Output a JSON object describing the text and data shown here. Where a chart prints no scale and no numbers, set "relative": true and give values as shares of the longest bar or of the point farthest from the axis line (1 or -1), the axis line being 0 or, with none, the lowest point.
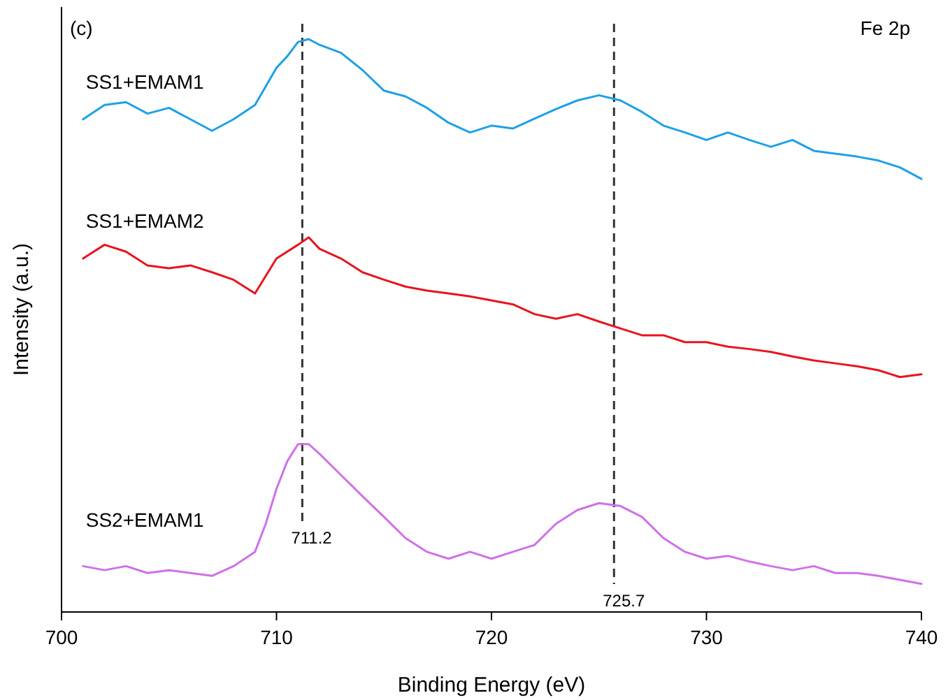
{
  "chart_data": {
    "type": "line",
    "relative": true,
    "xlabel": "Binding Energy (eV)",
    "ylabel": "Intensity (a.u.)",
    "xlim": [
      700,
      740
    ],
    "xticks": [
      700,
      710,
      720,
      730,
      740
    ],
    "line_style": "solid",
    "marker": "none",
    "grid": false,
    "annotations": [
      "(c)",
      "Fe 2p"
    ],
    "ref_lines": [
      {
        "axis": "x",
        "value": 711.2,
        "label": "711.2",
        "line_style": "dashed",
        "color": "#333333"
      },
      {
        "axis": "x",
        "value": 725.7,
        "label": "725.7",
        "line_style": "dashed",
        "color": "#333333"
      }
    ],
    "series": [
      {
        "name": "SS1+EMAM1",
        "color": "#1ea0e6",
        "x": [
          701,
          702,
          703,
          704,
          705,
          706,
          707,
          708,
          709,
          710,
          710.5,
          711,
          711.5,
          712,
          713,
          714,
          715,
          716,
          717,
          718,
          719,
          720,
          721,
          722,
          723,
          724,
          725,
          726,
          727,
          728,
          729,
          730,
          731,
          732,
          733,
          734,
          735,
          736,
          737,
          738,
          739,
          740
        ],
        "values": [
          0.86,
          0.885,
          0.89,
          0.87,
          0.88,
          0.86,
          0.84,
          0.86,
          0.885,
          0.95,
          0.97,
          0.995,
          1,
          0.99,
          0.976,
          0.946,
          0.91,
          0.9,
          0.88,
          0.854,
          0.837,
          0.849,
          0.844,
          0.861,
          0.878,
          0.893,
          0.902,
          0.893,
          0.873,
          0.849,
          0.837,
          0.824,
          0.837,
          0.824,
          0.812,
          0.824,
          0.805,
          0.8,
          0.795,
          0.788,
          0.776,
          0.756
        ]
      },
      {
        "name": "SS1+EMAM2",
        "color": "#e8141e",
        "x": [
          701,
          702,
          703,
          704,
          705,
          706,
          707,
          708,
          709,
          710,
          711,
          711.5,
          712,
          713,
          714,
          715,
          716,
          717,
          718,
          719,
          720,
          721,
          722,
          723,
          724,
          725,
          726,
          727,
          728,
          729,
          730,
          731,
          732,
          733,
          734,
          735,
          736,
          737,
          738,
          739,
          740
        ],
        "values": [
          0.617,
          0.641,
          0.629,
          0.605,
          0.6,
          0.605,
          0.593,
          0.58,
          0.556,
          0.617,
          0.641,
          0.654,
          0.634,
          0.617,
          0.593,
          0.58,
          0.568,
          0.561,
          0.556,
          0.551,
          0.544,
          0.537,
          0.52,
          0.512,
          0.52,
          0.507,
          0.495,
          0.483,
          0.483,
          0.471,
          0.471,
          0.463,
          0.459,
          0.454,
          0.446,
          0.439,
          0.434,
          0.429,
          0.422,
          0.41,
          0.415
        ]
      },
      {
        "name": "SS2+EMAM1",
        "color": "#d070e8",
        "x": [
          701,
          702,
          703,
          704,
          705,
          706,
          707,
          708,
          709,
          709.5,
          710,
          710.5,
          711,
          711.5,
          712,
          713,
          714,
          715,
          716,
          717,
          718,
          719,
          720,
          721,
          722,
          723,
          724,
          725,
          726,
          727,
          728,
          729,
          730,
          731,
          732,
          733,
          734,
          735,
          736,
          737,
          738,
          739,
          740
        ],
        "values": [
          0.08,
          0.073,
          0.08,
          0.068,
          0.073,
          0.068,
          0.063,
          0.08,
          0.105,
          0.154,
          0.215,
          0.263,
          0.293,
          0.293,
          0.276,
          0.239,
          0.202,
          0.166,
          0.129,
          0.105,
          0.093,
          0.105,
          0.093,
          0.105,
          0.117,
          0.154,
          0.178,
          0.19,
          0.185,
          0.166,
          0.129,
          0.105,
          0.093,
          0.098,
          0.088,
          0.08,
          0.073,
          0.08,
          0.068,
          0.068,
          0.063,
          0.056,
          0.049
        ]
      }
    ]
  }
}
